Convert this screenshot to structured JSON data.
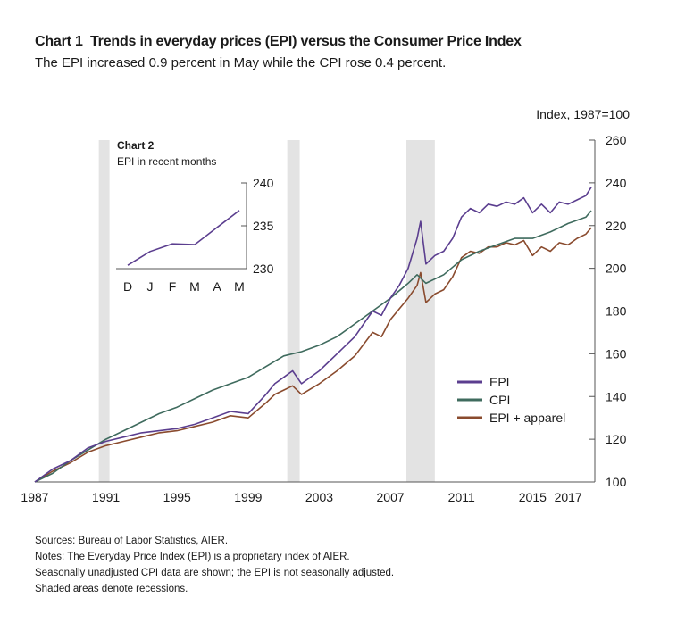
{
  "header": {
    "chart_number": "Chart 1",
    "title": "Trends in everyday prices (EPI) versus the Consumer Price Index",
    "subtitle": "The EPI increased 0.9 percent in May while the CPI rose 0.4 percent."
  },
  "footnotes": [
    "Sources: Bureau of Labor Statistics, AIER.",
    "Notes: The Everyday Price Index (EPI) is a proprietary index of AIER.",
    "Seasonally unadjusted CPI data are shown; the EPI is not seasonally adjusted.",
    "Shaded areas denote recessions."
  ],
  "colors": {
    "epi": "#5b3e8f",
    "cpi": "#3f6b5e",
    "epi_apparel": "#8a4b2e",
    "recession": "#e3e3e3",
    "axis": "#555555"
  },
  "chart_data": [
    {
      "type": "line",
      "title": "Trends in everyday prices (EPI) versus the Consumer Price Index",
      "ylabel": "Index, 1987=100",
      "xlabel": "",
      "xlim": [
        1987,
        2018.5
      ],
      "ylim": [
        100,
        260
      ],
      "y_ticks": [
        100,
        120,
        140,
        160,
        180,
        200,
        220,
        240,
        260
      ],
      "x_ticks": [
        {
          "label": "1987",
          "value": 1987
        },
        {
          "label": "1991",
          "value": 1991
        },
        {
          "label": "1995",
          "value": 1995
        },
        {
          "label": "1999",
          "value": 1999
        },
        {
          "label": "2003",
          "value": 2003
        },
        {
          "label": "2007",
          "value": 2007
        },
        {
          "label": "2011",
          "value": 2011
        },
        {
          "label": "2015",
          "value": 2015
        },
        {
          "label": "2017",
          "value": 2017
        }
      ],
      "recessions": [
        [
          1990.6,
          1991.2
        ],
        [
          2001.2,
          2001.9
        ],
        [
          2007.9,
          2009.5
        ]
      ],
      "legend": {
        "placement": "right",
        "entries": [
          "EPI",
          "CPI",
          "EPI + apparel"
        ]
      },
      "series": [
        {
          "name": "EPI",
          "x": [
            1987,
            1988,
            1989,
            1990,
            1991,
            1992,
            1993,
            1994,
            1995,
            1996,
            1997,
            1998,
            1999,
            2000,
            2000.5,
            2001,
            2001.5,
            2002,
            2003,
            2004,
            2005,
            2006,
            2006.5,
            2007,
            2007.5,
            2008,
            2008.5,
            2008.7,
            2009,
            2009.5,
            2010,
            2010.5,
            2011,
            2011.5,
            2012,
            2012.5,
            2013,
            2013.5,
            2014,
            2014.5,
            2015,
            2015.5,
            2016,
            2016.5,
            2017,
            2017.5,
            2018,
            2018.3
          ],
          "values": [
            100,
            106,
            110,
            116,
            119,
            121,
            123,
            124,
            125,
            127,
            130,
            133,
            132,
            141,
            146,
            149,
            152,
            146,
            152,
            160,
            168,
            180,
            178,
            186,
            192,
            200,
            214,
            222,
            202,
            206,
            208,
            214,
            224,
            228,
            226,
            230,
            229,
            231,
            230,
            233,
            226,
            230,
            226,
            231,
            230,
            232,
            234,
            238
          ]
        },
        {
          "name": "CPI",
          "x": [
            1987,
            1988,
            1989,
            1990,
            1991,
            1992,
            1993,
            1994,
            1995,
            1996,
            1997,
            1998,
            1999,
            2000,
            2001,
            2002,
            2003,
            2004,
            2005,
            2006,
            2007,
            2008,
            2008.5,
            2009,
            2010,
            2011,
            2012,
            2013,
            2014,
            2015,
            2016,
            2017,
            2018,
            2018.3
          ],
          "values": [
            100,
            104,
            110,
            115,
            120,
            124,
            128,
            132,
            135,
            139,
            143,
            146,
            149,
            154,
            159,
            161,
            164,
            168,
            174,
            180,
            186,
            193,
            197,
            193,
            197,
            204,
            208,
            211,
            214,
            214,
            217,
            221,
            224,
            227
          ]
        },
        {
          "name": "EPI + apparel",
          "x": [
            1987,
            1988,
            1989,
            1990,
            1991,
            1992,
            1993,
            1994,
            1995,
            1996,
            1997,
            1998,
            1999,
            2000,
            2000.5,
            2001,
            2001.5,
            2002,
            2003,
            2004,
            2005,
            2006,
            2006.5,
            2007,
            2007.5,
            2008,
            2008.5,
            2008.7,
            2009,
            2009.5,
            2010,
            2010.5,
            2011,
            2011.5,
            2012,
            2012.5,
            2013,
            2013.5,
            2014,
            2014.5,
            2015,
            2015.5,
            2016,
            2016.5,
            2017,
            2017.5,
            2018,
            2018.3
          ],
          "values": [
            100,
            105,
            109,
            114,
            117,
            119,
            121,
            123,
            124,
            126,
            128,
            131,
            130,
            137,
            141,
            143,
            145,
            141,
            146,
            152,
            159,
            170,
            168,
            176,
            181,
            186,
            192,
            198,
            184,
            188,
            190,
            196,
            205,
            208,
            207,
            210,
            210,
            212,
            211,
            213,
            206,
            210,
            208,
            212,
            211,
            214,
            216,
            219
          ]
        }
      ]
    },
    {
      "type": "line",
      "title": "Chart 2",
      "subtitle": "EPI in recent months",
      "ylim": [
        230,
        240
      ],
      "y_ticks": [
        230,
        235,
        240
      ],
      "categories": [
        "D",
        "J",
        "F",
        "M",
        "A",
        "M"
      ],
      "series": [
        {
          "name": "EPI",
          "values": [
            230.4,
            232.0,
            232.9,
            232.8,
            234.8,
            236.8
          ]
        }
      ]
    }
  ]
}
